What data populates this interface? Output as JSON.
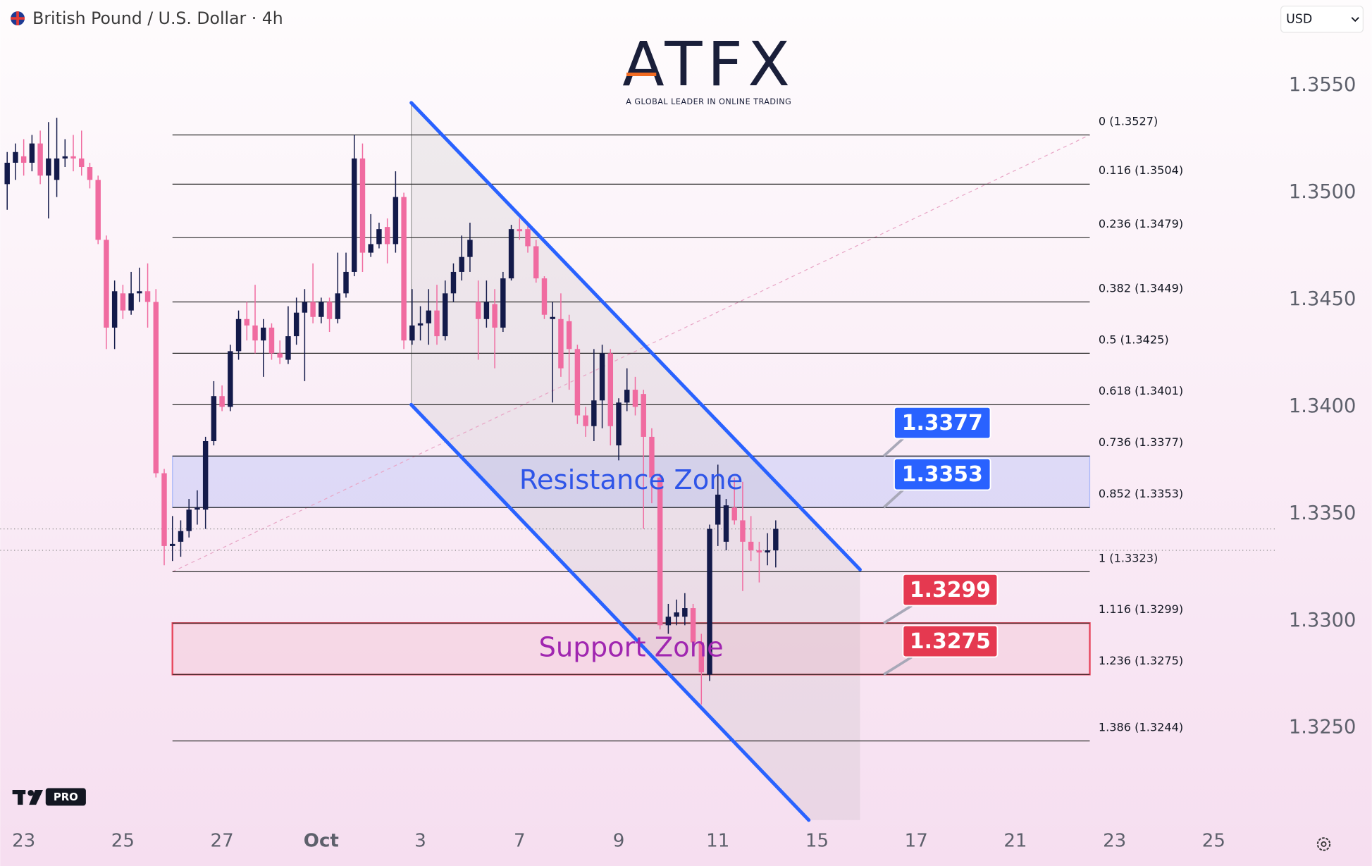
{
  "chart_data": {
    "type": "candlestick",
    "title": "British Pound / U.S. Dollar · 4h",
    "currency": "USD",
    "up_color": "#131a4a",
    "down_color": "#f06ba0",
    "xlim": [
      -0.85,
      153.7
    ],
    "ylim": [
      1.3206,
      1.359
    ],
    "xticks": [
      {
        "value": 2,
        "label": "23"
      },
      {
        "value": 14,
        "label": "25"
      },
      {
        "value": 26,
        "label": "27"
      },
      {
        "value": 38,
        "label": "Oct"
      },
      {
        "value": 50,
        "label": "3"
      },
      {
        "value": 62,
        "label": "7"
      },
      {
        "value": 74,
        "label": "9"
      },
      {
        "value": 86,
        "label": "11"
      },
      {
        "value": 98,
        "label": "15"
      },
      {
        "value": 110,
        "label": "17"
      },
      {
        "value": 122,
        "label": "21"
      },
      {
        "value": 134,
        "label": "23"
      },
      {
        "value": 146,
        "label": "25"
      }
    ],
    "yticks": [
      {
        "value": 1.355,
        "label": "1.3550"
      },
      {
        "value": 1.35,
        "label": "1.3500"
      },
      {
        "value": 1.345,
        "label": "1.3450"
      },
      {
        "value": 1.34,
        "label": "1.3400"
      },
      {
        "value": 1.335,
        "label": "1.3350"
      },
      {
        "value": 1.33,
        "label": "1.3300"
      },
      {
        "value": 1.325,
        "label": "1.3250"
      }
    ],
    "open": [
      1.3504,
      1.3514,
      1.3517,
      1.3514,
      1.3523,
      1.3508,
      1.3506,
      1.3516,
      1.3517,
      1.3516,
      1.3512,
      1.3506,
      1.3478,
      1.3437,
      1.3453,
      1.3445,
      1.3453,
      1.3454,
      1.3449,
      1.3369,
      1.3335,
      1.3337,
      1.3342,
      1.3352,
      1.3352,
      1.3384,
      1.3405,
      1.34,
      1.3426,
      1.3441,
      1.3438,
      1.3431,
      1.3437,
      1.3425,
      1.3422,
      1.3433,
      1.3444,
      1.3449,
      1.3442,
      1.3449,
      1.3441,
      1.3453,
      1.3463,
      1.3516,
      1.3472,
      1.3476,
      1.3484,
      1.3476,
      1.3498,
      1.3431,
      1.3438,
      1.3439,
      1.3445,
      1.3433,
      1.3453,
      1.3463,
      1.347,
      1.3449,
      1.3441,
      1.3448,
      1.3437,
      1.346,
      1.3483,
      1.3483,
      1.3475,
      1.346,
      1.3441,
      1.3441,
      1.344,
      1.3427,
      1.3396,
      1.3391,
      1.3403,
      1.3425,
      1.3382,
      1.3402,
      1.3408,
      1.3406,
      1.3386,
      1.3367,
      1.3298,
      1.3302,
      1.3302,
      1.3306,
      1.329,
      1.3275,
      1.3345,
      1.3337,
      1.3353,
      1.3347,
      1.3337,
      1.3333,
      1.3332,
      1.3333
    ],
    "high": [
      1.3519,
      1.3523,
      1.3525,
      1.3527,
      1.3529,
      1.3533,
      1.3535,
      1.3525,
      1.3527,
      1.3529,
      1.3514,
      1.3508,
      1.348,
      1.3459,
      1.3457,
      1.3463,
      1.3465,
      1.3467,
      1.3455,
      1.3371,
      1.3349,
      1.3347,
      1.3357,
      1.3361,
      1.3386,
      1.3412,
      1.341,
      1.3429,
      1.3445,
      1.3449,
      1.3457,
      1.3441,
      1.3439,
      1.3431,
      1.3447,
      1.3451,
      1.3455,
      1.3467,
      1.3451,
      1.3451,
      1.3472,
      1.3472,
      1.3527,
      1.3523,
      1.349,
      1.3486,
      1.3488,
      1.351,
      1.35,
      1.3455,
      1.3447,
      1.3455,
      1.3457,
      1.3459,
      1.3467,
      1.348,
      1.3486,
      1.3459,
      1.3459,
      1.3455,
      1.3463,
      1.3485,
      1.3488,
      1.3486,
      1.3478,
      1.3461,
      1.3449,
      1.3453,
      1.3443,
      1.3429,
      1.34,
      1.3427,
      1.3429,
      1.3427,
      1.3404,
      1.3418,
      1.3414,
      1.3408,
      1.339,
      1.3369,
      1.3308,
      1.331,
      1.3313,
      1.3308,
      1.3294,
      1.3345,
      1.3373,
      1.3357,
      1.3367,
      1.3365,
      1.3349,
      1.3337,
      1.3341,
      1.3347
    ],
    "low": [
      1.3492,
      1.3506,
      1.3508,
      1.351,
      1.3504,
      1.3488,
      1.3498,
      1.3512,
      1.351,
      1.3508,
      1.3502,
      1.3476,
      1.3427,
      1.3427,
      1.3441,
      1.3443,
      1.3449,
      1.3437,
      1.3367,
      1.3326,
      1.3328,
      1.333,
      1.3339,
      1.3345,
      1.3343,
      1.3382,
      1.3398,
      1.3398,
      1.3422,
      1.3431,
      1.3425,
      1.3414,
      1.3422,
      1.342,
      1.342,
      1.3429,
      1.3412,
      1.3439,
      1.3439,
      1.3435,
      1.3439,
      1.3451,
      1.3461,
      1.3463,
      1.347,
      1.3474,
      1.3467,
      1.3472,
      1.3427,
      1.3429,
      1.3431,
      1.3429,
      1.3429,
      1.3431,
      1.3449,
      1.3459,
      1.3463,
      1.3422,
      1.3437,
      1.3418,
      1.3435,
      1.3459,
      1.3478,
      1.3472,
      1.3458,
      1.3441,
      1.3402,
      1.3414,
      1.3408,
      1.3392,
      1.3386,
      1.3384,
      1.339,
      1.3382,
      1.3375,
      1.3398,
      1.3396,
      1.3343,
      1.3355,
      1.3296,
      1.3294,
      1.3298,
      1.3298,
      1.3288,
      1.3261,
      1.3272,
      1.3335,
      1.3333,
      1.3345,
      1.3314,
      1.3328,
      1.3318,
      1.3326,
      1.3325
    ],
    "close": [
      1.3514,
      1.3519,
      1.3514,
      1.3523,
      1.3508,
      1.3516,
      1.3516,
      1.3517,
      1.3516,
      1.3512,
      1.3506,
      1.3478,
      1.3437,
      1.3454,
      1.3445,
      1.3453,
      1.3454,
      1.3449,
      1.3369,
      1.3335,
      1.3336,
      1.3342,
      1.3352,
      1.3353,
      1.3384,
      1.3405,
      1.34,
      1.3426,
      1.3441,
      1.3438,
      1.3431,
      1.3437,
      1.3425,
      1.3423,
      1.3433,
      1.3444,
      1.3449,
      1.3442,
      1.3449,
      1.3441,
      1.3453,
      1.3463,
      1.3516,
      1.3472,
      1.3476,
      1.3483,
      1.3476,
      1.3498,
      1.3431,
      1.3438,
      1.3439,
      1.3445,
      1.3433,
      1.3453,
      1.3463,
      1.347,
      1.3478,
      1.3441,
      1.3449,
      1.3437,
      1.346,
      1.3483,
      1.3482,
      1.3475,
      1.346,
      1.3443,
      1.3442,
      1.3418,
      1.3427,
      1.3396,
      1.3391,
      1.3403,
      1.3425,
      1.3391,
      1.3402,
      1.3408,
      1.34,
      1.3386,
      1.3367,
      1.3298,
      1.3302,
      1.3304,
      1.3306,
      1.329,
      1.3276,
      1.3343,
      1.3359,
      1.3354,
      1.3347,
      1.3337,
      1.3333,
      1.3332,
      1.3333,
      1.3343
    ],
    "price_lines": [
      1.3343,
      1.3333
    ],
    "fib": {
      "x_range": [
        20,
        131
      ],
      "levels": [
        {
          "value": 1.3527,
          "label": "0 (1.3527)"
        },
        {
          "value": 1.3504,
          "label": "0.116 (1.3504)"
        },
        {
          "value": 1.3479,
          "label": "0.236 (1.3479)"
        },
        {
          "value": 1.3449,
          "label": "0.382 (1.3449)"
        },
        {
          "value": 1.3425,
          "label": "0.5 (1.3425)"
        },
        {
          "value": 1.3401,
          "label": "0.618 (1.3401)"
        },
        {
          "value": 1.3377,
          "label": "0.736 (1.3377)"
        },
        {
          "value": 1.3353,
          "label": "0.852 (1.3353)"
        },
        {
          "value": 1.3323,
          "label": "1 (1.3323)"
        },
        {
          "value": 1.3299,
          "label": "1.116 (1.3299)"
        },
        {
          "value": 1.3275,
          "label": "1.236 (1.3275)"
        },
        {
          "value": 1.3244,
          "label": "1.386 (1.3244)"
        }
      ]
    },
    "zones": [
      {
        "name": "Resistance Zone",
        "top": 1.3377,
        "bottom": 1.3353,
        "color": "#2962ff"
      },
      {
        "name": "Support Zone",
        "top": 1.3299,
        "bottom": 1.3275,
        "color": "#e53950"
      }
    ],
    "channel": {
      "color": "#2962ff",
      "upper": [
        [
          48.9,
          1.3542
        ],
        [
          103.2,
          1.3324
        ]
      ],
      "lower": [
        [
          48.9,
          1.3401
        ],
        [
          97.0,
          1.3207
        ]
      ]
    }
  },
  "branding": {
    "logo": "ATFX",
    "tagline": "A GLOBAL LEADER IN ONLINE TRADING",
    "badge": "PRO"
  }
}
